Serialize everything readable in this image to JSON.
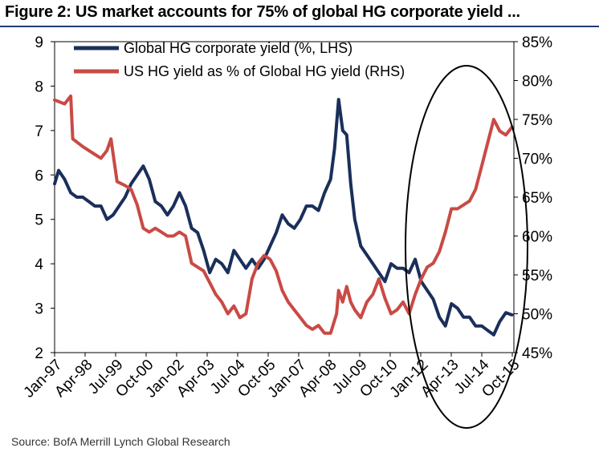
{
  "title": "Figure 2: US market accounts for 75% of global HG corporate yield ...",
  "source": "Source: BofA Merrill Lynch Global Research",
  "chart_data": {
    "type": "line",
    "x_tick_labels": [
      "Jan-97",
      "Apr-98",
      "Jul-99",
      "Oct-00",
      "Jan-02",
      "Apr-03",
      "Jul-04",
      "Oct-05",
      "Jan-07",
      "Apr-08",
      "Jul-09",
      "Oct-10",
      "Jan-12",
      "Apr-13",
      "Jul-14",
      "Oct-15"
    ],
    "x_range": [
      "1997-01",
      "2016-01"
    ],
    "y_left": {
      "range": [
        2,
        9
      ],
      "ticks": [
        2,
        3,
        4,
        5,
        6,
        7,
        8,
        9
      ],
      "tick_labels": [
        "2",
        "3",
        "4",
        "5",
        "6",
        "7",
        "8",
        "9"
      ]
    },
    "y_right": {
      "range": [
        45,
        85
      ],
      "ticks": [
        45,
        50,
        55,
        60,
        65,
        70,
        75,
        80,
        85
      ],
      "tick_labels": [
        "45%",
        "50%",
        "55%",
        "60%",
        "65%",
        "70%",
        "75%",
        "80%",
        "85%"
      ]
    },
    "legend_position": "top-left",
    "series": [
      {
        "name": "Global HG corporate yield (%, LHS)",
        "axis": "left",
        "color": "#1a2f5a",
        "points": [
          [
            "1997-01",
            5.8
          ],
          [
            "1997-03",
            6.1
          ],
          [
            "1997-06",
            5.9
          ],
          [
            "1997-09",
            5.6
          ],
          [
            "1997-12",
            5.5
          ],
          [
            "1998-03",
            5.5
          ],
          [
            "1998-06",
            5.4
          ],
          [
            "1998-09",
            5.3
          ],
          [
            "1998-12",
            5.3
          ],
          [
            "1999-03",
            5.0
          ],
          [
            "1999-06",
            5.1
          ],
          [
            "1999-09",
            5.3
          ],
          [
            "1999-12",
            5.5
          ],
          [
            "2000-03",
            5.8
          ],
          [
            "2000-06",
            6.0
          ],
          [
            "2000-09",
            6.2
          ],
          [
            "2000-12",
            5.9
          ],
          [
            "2001-03",
            5.4
          ],
          [
            "2001-06",
            5.3
          ],
          [
            "2001-09",
            5.1
          ],
          [
            "2001-12",
            5.3
          ],
          [
            "2002-03",
            5.6
          ],
          [
            "2002-06",
            5.3
          ],
          [
            "2002-09",
            4.8
          ],
          [
            "2002-12",
            4.7
          ],
          [
            "2003-03",
            4.3
          ],
          [
            "2003-06",
            3.8
          ],
          [
            "2003-09",
            4.1
          ],
          [
            "2003-12",
            4.0
          ],
          [
            "2004-03",
            3.8
          ],
          [
            "2004-06",
            4.3
          ],
          [
            "2004-09",
            4.1
          ],
          [
            "2004-12",
            3.9
          ],
          [
            "2005-03",
            4.1
          ],
          [
            "2005-06",
            3.9
          ],
          [
            "2005-09",
            4.1
          ],
          [
            "2005-12",
            4.4
          ],
          [
            "2006-03",
            4.7
          ],
          [
            "2006-06",
            5.1
          ],
          [
            "2006-09",
            4.9
          ],
          [
            "2006-12",
            4.8
          ],
          [
            "2007-03",
            5.0
          ],
          [
            "2007-06",
            5.3
          ],
          [
            "2007-09",
            5.3
          ],
          [
            "2007-12",
            5.2
          ],
          [
            "2008-03",
            5.6
          ],
          [
            "2008-06",
            5.9
          ],
          [
            "2008-08",
            6.6
          ],
          [
            "2008-10",
            7.7
          ],
          [
            "2008-12",
            7.0
          ],
          [
            "2009-02",
            6.9
          ],
          [
            "2009-04",
            5.8
          ],
          [
            "2009-06",
            5.0
          ],
          [
            "2009-09",
            4.4
          ],
          [
            "2009-12",
            4.2
          ],
          [
            "2010-03",
            4.0
          ],
          [
            "2010-06",
            3.8
          ],
          [
            "2010-09",
            3.6
          ],
          [
            "2010-12",
            4.0
          ],
          [
            "2011-03",
            3.9
          ],
          [
            "2011-06",
            3.9
          ],
          [
            "2011-09",
            3.8
          ],
          [
            "2011-12",
            4.1
          ],
          [
            "2012-03",
            3.6
          ],
          [
            "2012-06",
            3.4
          ],
          [
            "2012-09",
            3.2
          ],
          [
            "2012-12",
            2.8
          ],
          [
            "2013-03",
            2.6
          ],
          [
            "2013-06",
            3.1
          ],
          [
            "2013-09",
            3.0
          ],
          [
            "2013-12",
            2.8
          ],
          [
            "2014-03",
            2.8
          ],
          [
            "2014-06",
            2.6
          ],
          [
            "2014-09",
            2.6
          ],
          [
            "2014-12",
            2.5
          ],
          [
            "2015-03",
            2.4
          ],
          [
            "2015-06",
            2.7
          ],
          [
            "2015-09",
            2.9
          ],
          [
            "2015-12",
            2.85
          ]
        ]
      },
      {
        "name": "US HG yield as % of Global HG yield (RHS)",
        "axis": "right",
        "color": "#c94a45",
        "points": [
          [
            "1997-01",
            77.5
          ],
          [
            "1997-06",
            77.0
          ],
          [
            "1997-09",
            78.0
          ],
          [
            "1997-10",
            72.5
          ],
          [
            "1998-03",
            71.5
          ],
          [
            "1998-06",
            71.0
          ],
          [
            "1998-09",
            70.5
          ],
          [
            "1998-12",
            70.0
          ],
          [
            "1999-03",
            71.0
          ],
          [
            "1999-05",
            72.5
          ],
          [
            "1999-08",
            67.0
          ],
          [
            "1999-12",
            66.5
          ],
          [
            "2000-03",
            66.0
          ],
          [
            "2000-06",
            64.0
          ],
          [
            "2000-09",
            61.0
          ],
          [
            "2000-12",
            60.5
          ],
          [
            "2001-03",
            61.0
          ],
          [
            "2001-06",
            60.5
          ],
          [
            "2001-09",
            60.0
          ],
          [
            "2001-12",
            60.0
          ],
          [
            "2002-03",
            60.5
          ],
          [
            "2002-06",
            60.0
          ],
          [
            "2002-09",
            56.5
          ],
          [
            "2002-12",
            56.0
          ],
          [
            "2003-03",
            55.5
          ],
          [
            "2003-06",
            54.0
          ],
          [
            "2003-09",
            52.5
          ],
          [
            "2003-12",
            51.5
          ],
          [
            "2004-03",
            50.0
          ],
          [
            "2004-06",
            51.0
          ],
          [
            "2004-09",
            49.5
          ],
          [
            "2004-12",
            50.0
          ],
          [
            "2005-03",
            54.5
          ],
          [
            "2005-06",
            56.5
          ],
          [
            "2005-09",
            57.5
          ],
          [
            "2005-12",
            57.0
          ],
          [
            "2006-03",
            55.5
          ],
          [
            "2006-06",
            53.0
          ],
          [
            "2006-09",
            51.5
          ],
          [
            "2006-12",
            50.5
          ],
          [
            "2007-03",
            49.5
          ],
          [
            "2007-06",
            48.5
          ],
          [
            "2007-09",
            48.0
          ],
          [
            "2007-12",
            48.5
          ],
          [
            "2008-03",
            47.5
          ],
          [
            "2008-06",
            47.5
          ],
          [
            "2008-09",
            50.0
          ],
          [
            "2008-10",
            53.0
          ],
          [
            "2008-12",
            51.5
          ],
          [
            "2009-02",
            53.5
          ],
          [
            "2009-04",
            51.5
          ],
          [
            "2009-06",
            50.5
          ],
          [
            "2009-09",
            49.5
          ],
          [
            "2009-12",
            51.5
          ],
          [
            "2010-03",
            52.5
          ],
          [
            "2010-06",
            54.5
          ],
          [
            "2010-09",
            52.0
          ],
          [
            "2010-12",
            50.0
          ],
          [
            "2011-03",
            50.5
          ],
          [
            "2011-06",
            51.5
          ],
          [
            "2011-09",
            50.0
          ],
          [
            "2011-12",
            52.5
          ],
          [
            "2012-03",
            54.5
          ],
          [
            "2012-06",
            56.0
          ],
          [
            "2012-09",
            56.5
          ],
          [
            "2012-12",
            58.0
          ],
          [
            "2013-03",
            60.5
          ],
          [
            "2013-06",
            63.5
          ],
          [
            "2013-09",
            63.5
          ],
          [
            "2013-12",
            64.0
          ],
          [
            "2014-03",
            64.5
          ],
          [
            "2014-06",
            66.0
          ],
          [
            "2014-09",
            69.0
          ],
          [
            "2014-12",
            72.0
          ],
          [
            "2015-03",
            75.0
          ],
          [
            "2015-06",
            73.5
          ],
          [
            "2015-09",
            73.0
          ],
          [
            "2015-12",
            74.0
          ]
        ]
      }
    ],
    "annotation": "ellipse highlighting the 2012–2015 period"
  }
}
